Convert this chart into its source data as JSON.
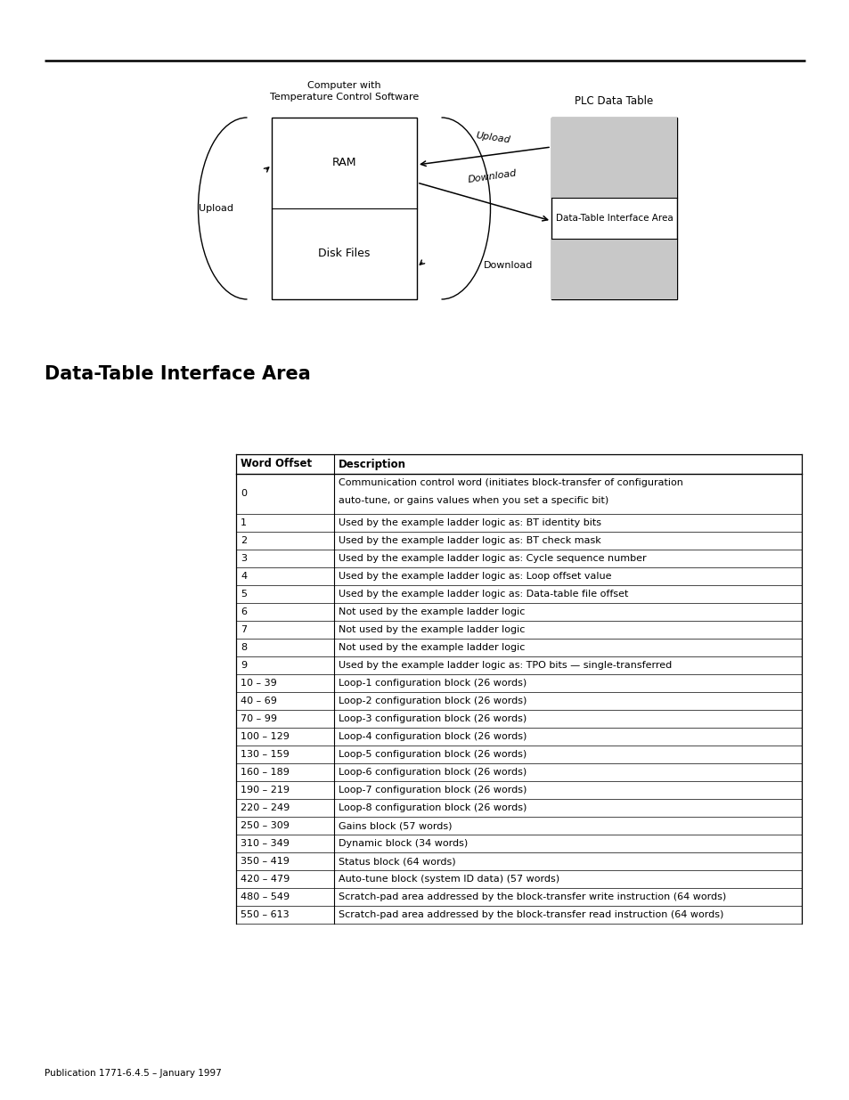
{
  "page_bg": "#ffffff",
  "diagram": {
    "computer_label": "Computer with\nTemperature Control Software",
    "plc_label": "PLC Data Table",
    "ram_label": "RAM",
    "disk_label": "Disk Files",
    "upload_left_label": "Upload",
    "upload_arrow_label": "Upload",
    "download_arrow_label": "Download",
    "download_right_label": "Download",
    "interface_label": "Data-Table Interface Area"
  },
  "section_title": "Data-Table Interface Area",
  "footer": "Publication 1771-6.4.5 – January 1997",
  "table_header": [
    "Word Offset",
    "Description"
  ],
  "table_rows": [
    [
      "0",
      "Communication control word (initiates block-transfer of configuration\nauto-tune, or gains values when you set a specific bit)"
    ],
    [
      "1",
      "Used by the example ladder logic as: BT identity bits"
    ],
    [
      "2",
      "Used by the example ladder logic as: BT check mask"
    ],
    [
      "3",
      "Used by the example ladder logic as: Cycle sequence number"
    ],
    [
      "4",
      "Used by the example ladder logic as: Loop offset value"
    ],
    [
      "5",
      "Used by the example ladder logic as: Data-table file offset"
    ],
    [
      "6",
      "Not used by the example ladder logic"
    ],
    [
      "7",
      "Not used by the example ladder logic"
    ],
    [
      "8",
      "Not used by the example ladder logic"
    ],
    [
      "9",
      "Used by the example ladder logic as: TPO bits — single-transferred"
    ],
    [
      "10 – 39",
      "Loop-1 configuration block (26 words)"
    ],
    [
      "40 – 69",
      "Loop-2 configuration block (26 words)"
    ],
    [
      "70 – 99",
      "Loop-3 configuration block (26 words)"
    ],
    [
      "100 – 129",
      "Loop-4 configuration block (26 words)"
    ],
    [
      "130 – 159",
      "Loop-5 configuration block (26 words)"
    ],
    [
      "160 – 189",
      "Loop-6 configuration block (26 words)"
    ],
    [
      "190 – 219",
      "Loop-7 configuration block (26 words)"
    ],
    [
      "220 – 249",
      "Loop-8 configuration block (26 words)"
    ],
    [
      "250 – 309",
      "Gains block (57 words)"
    ],
    [
      "310 – 349",
      "Dynamic block (34 words)"
    ],
    [
      "350 – 419",
      "Status block (64 words)"
    ],
    [
      "420 – 479",
      "Auto-tune block (system ID data) (57 words)"
    ],
    [
      "480 – 549",
      "Scratch-pad area addressed by the block-transfer write instruction (64 words)"
    ],
    [
      "550 – 613",
      "Scratch-pad area addressed by the block-transfer read instruction (64 words)"
    ]
  ]
}
